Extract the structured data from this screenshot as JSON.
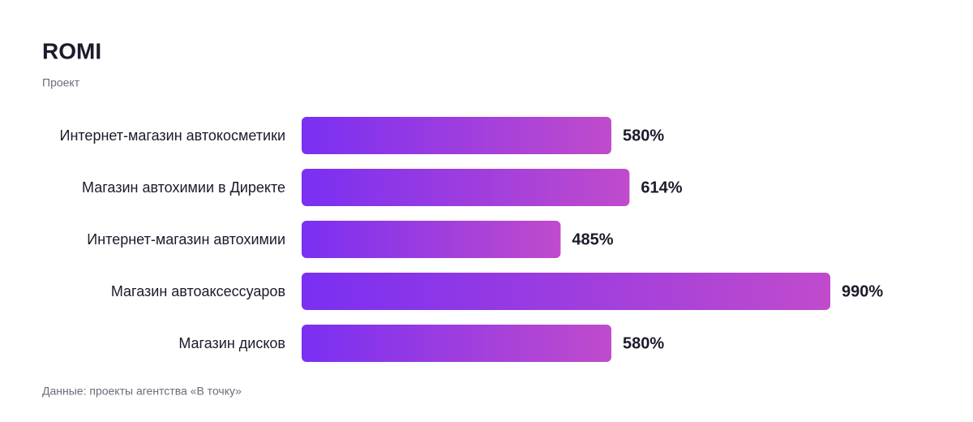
{
  "chart_data": {
    "type": "barh",
    "title": "ROMI",
    "subtitle": "Проект",
    "categories": [
      "Интернет-магазин автокосметики",
      "Магазин автохимии в Директе",
      "Интернет-магазин автохимии",
      "Магазин автоаксессуаров",
      "Магазин дисков"
    ],
    "values": [
      580,
      614,
      485,
      990,
      580
    ],
    "value_labels": [
      "580%",
      "614%",
      "485%",
      "990%",
      "580%"
    ],
    "gradient": [
      "#7a2ff2",
      "#c04bcc"
    ],
    "note": "Данные: проекты агентства «В точку»"
  }
}
